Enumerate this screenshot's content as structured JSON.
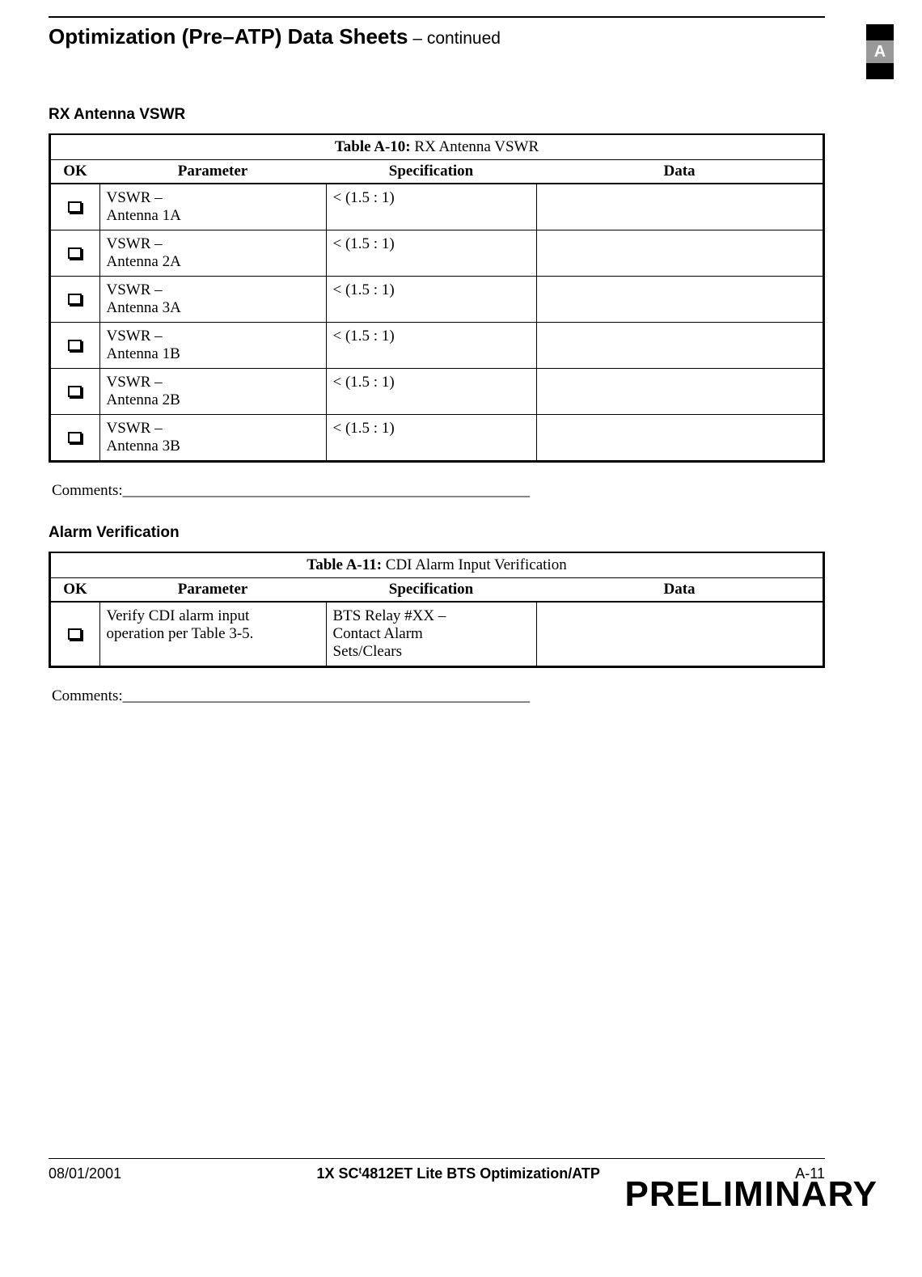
{
  "tab_letter": "A",
  "page_title_main": "Optimization (Pre–ATP) Data Sheets",
  "page_title_suffix": " – continued",
  "section1_heading": "RX Antenna VSWR",
  "table1": {
    "title_bold": "Table A-10:",
    "title_rest": " RX Antenna VSWR",
    "columns": {
      "ok": "OK",
      "param": "Parameter",
      "spec": "Specification",
      "data": "Data"
    },
    "rows": [
      {
        "param_l1": "VSWR –",
        "param_l2": "Antenna 1A",
        "spec": "< (1.5 : 1)",
        "data": ""
      },
      {
        "param_l1": "VSWR –",
        "param_l2": "Antenna 2A",
        "spec": "< (1.5 : 1)",
        "data": ""
      },
      {
        "param_l1": "VSWR –",
        "param_l2": "Antenna 3A",
        "spec": "< (1.5 : 1)",
        "data": ""
      },
      {
        "param_l1": "VSWR –",
        "param_l2": "Antenna 1B",
        "spec": "< (1.5 : 1)",
        "data": ""
      },
      {
        "param_l1": "VSWR –",
        "param_l2": "Antenna 2B",
        "spec": "< (1.5 : 1)",
        "data": ""
      },
      {
        "param_l1": "VSWR –",
        "param_l2": "Antenna 3B",
        "spec": "< (1.5 : 1)",
        "data": ""
      }
    ]
  },
  "comments_label": "Comments:",
  "comments_blank": "_____________________________________________________",
  "section2_heading": "Alarm Verification",
  "table2": {
    "title_bold": "Table A-11:",
    "title_rest": " CDI Alarm Input Verification",
    "columns": {
      "ok": "OK",
      "param": "Parameter",
      "spec": "Specification",
      "data": "Data"
    },
    "rows": [
      {
        "param_l1": "Verify CDI alarm input",
        "param_l2": "operation per Table 3-5.",
        "spec_l1": "BTS Relay #XX –",
        "spec_l2": "Contact Alarm",
        "spec_l3": "Sets/Clears",
        "data": ""
      }
    ]
  },
  "footer": {
    "date": "08/01/2001",
    "center_prefix": "1X SC",
    "center_tm": "t",
    "center_suffix": "4812ET Lite BTS Optimization/ATP",
    "page": "A-11",
    "preliminary": "PRELIMINARY"
  }
}
